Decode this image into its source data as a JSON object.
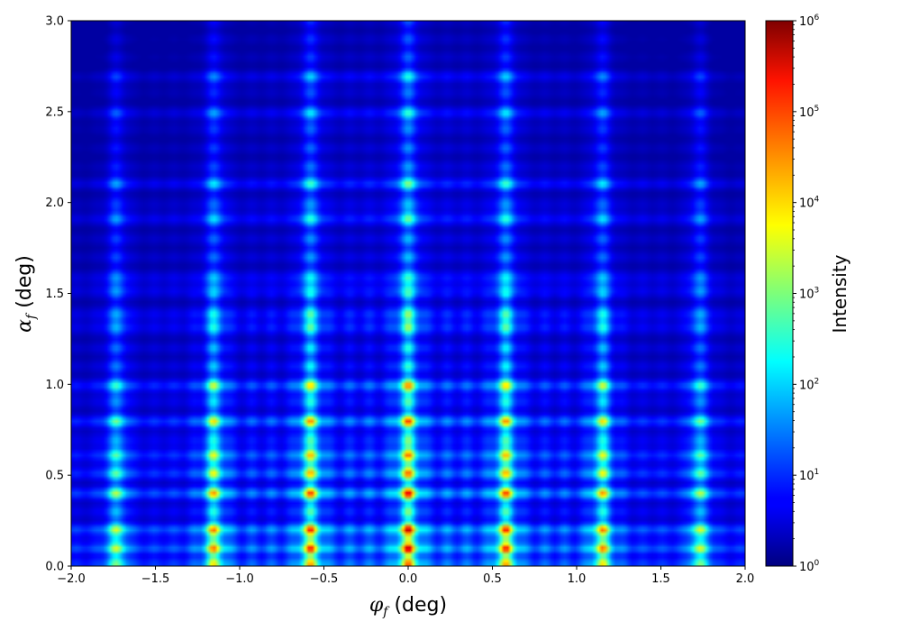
{
  "chart_data": {
    "type": "heatmap",
    "xlabel": "φf (deg)",
    "ylabel": "αf (deg)",
    "xlabel_main": "φ",
    "xlabel_sub": "f",
    "xlabel_unit": " (deg)",
    "ylabel_main": "α",
    "ylabel_sub": "f",
    "ylabel_unit": " (deg)",
    "xlim": [
      -2.0,
      2.0
    ],
    "ylim": [
      0.0,
      3.0
    ],
    "x_ticks": [
      "-2.0",
      "-1.5",
      "-1.0",
      "-0.5",
      "0.0",
      "0.5",
      "1.0",
      "1.5",
      "2.0"
    ],
    "y_ticks": [
      "0.0",
      "0.5",
      "1.0",
      "1.5",
      "2.0",
      "2.5",
      "3.0"
    ],
    "colorbar": {
      "label": "Intensity",
      "scale": "log",
      "range": [
        1,
        1000000
      ],
      "tick_exponents": [
        "0",
        "1",
        "2",
        "3",
        "4",
        "5",
        "6"
      ],
      "tick_base": "10",
      "colormap": "jet"
    },
    "peak_columns_deg": [
      -1.73,
      -1.15,
      -0.58,
      0.0,
      0.58,
      1.15,
      1.73
    ],
    "peak_rows_deg": [
      0.04,
      0.09,
      0.15,
      0.2,
      0.4,
      0.53,
      0.63,
      0.79,
      0.98,
      1.35,
      1.55,
      1.93,
      2.11,
      2.48,
      2.68
    ]
  }
}
